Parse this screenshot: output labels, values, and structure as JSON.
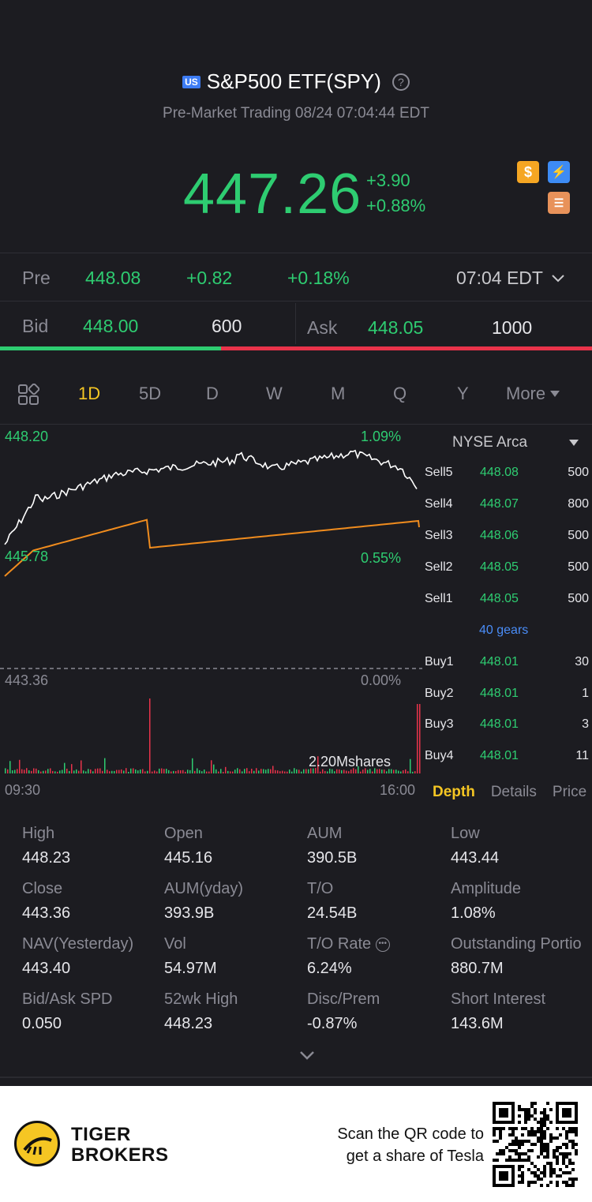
{
  "header": {
    "market_badge": "US",
    "title": "S&P500 ETF(SPY)",
    "subtitle": "Pre-Market Trading 08/24 07:04:44 EDT"
  },
  "quote": {
    "price": "447.26",
    "change": "+3.90",
    "change_pct": "+0.88%"
  },
  "pre": {
    "label": "Pre",
    "price": "448.08",
    "change": "+0.82",
    "change_pct": "+0.18%",
    "time": "07:04 EDT"
  },
  "bid_ask": {
    "bid_label": "Bid",
    "bid_price": "448.00",
    "bid_size": "600",
    "ask_label": "Ask",
    "ask_price": "448.05",
    "ask_size": "1000",
    "bid_fraction": 0.373
  },
  "tabs": [
    "1D",
    "5D",
    "D",
    "W",
    "M",
    "Q",
    "Y"
  ],
  "more_label": "More",
  "chart": {
    "top_price": "448.20",
    "top_pct": "1.09%",
    "mid_price": "445.78",
    "mid_pct": "0.55%",
    "base_price": "443.36",
    "base_pct": "0.00%",
    "volume_label": "2.20Mshares",
    "start_time": "09:30",
    "end_time": "16:00"
  },
  "depth": {
    "exchange": "NYSE Arca",
    "gears": "40 gears",
    "sell": [
      {
        "label": "Sell5",
        "price": "448.08",
        "qty": "500"
      },
      {
        "label": "Sell4",
        "price": "448.07",
        "qty": "800"
      },
      {
        "label": "Sell3",
        "price": "448.06",
        "qty": "500"
      },
      {
        "label": "Sell2",
        "price": "448.05",
        "qty": "500"
      },
      {
        "label": "Sell1",
        "price": "448.05",
        "qty": "500"
      }
    ],
    "buy": [
      {
        "label": "Buy1",
        "price": "448.01",
        "qty": "30"
      },
      {
        "label": "Buy2",
        "price": "448.01",
        "qty": "1"
      },
      {
        "label": "Buy3",
        "price": "448.01",
        "qty": "3"
      },
      {
        "label": "Buy4",
        "price": "448.01",
        "qty": "11"
      }
    ],
    "tabs": [
      "Depth",
      "Details",
      "Price"
    ]
  },
  "stats": [
    {
      "k": "High",
      "v": "448.23"
    },
    {
      "k": "Open",
      "v": "445.16"
    },
    {
      "k": "AUM",
      "v": "390.5B"
    },
    {
      "k": "Low",
      "v": "443.44"
    },
    {
      "k": "Close",
      "v": "443.36"
    },
    {
      "k": "AUM(yday)",
      "v": "393.9B"
    },
    {
      "k": "T/O",
      "v": "24.54B"
    },
    {
      "k": "Amplitude",
      "v": "1.08%"
    },
    {
      "k": "NAV(Yesterday)",
      "v": "443.40"
    },
    {
      "k": "Vol",
      "v": "54.97M"
    },
    {
      "k": "T/O Rate",
      "v": "6.24%"
    },
    {
      "k": "Outstanding Portio",
      "v": "880.7M"
    },
    {
      "k": "Bid/Ask SPD",
      "v": "0.050"
    },
    {
      "k": "52wk High",
      "v": "448.23"
    },
    {
      "k": "Disc/Prem",
      "v": "-0.87%"
    },
    {
      "k": "Short Interest",
      "v": "143.6M"
    }
  ],
  "footer": {
    "brand_line1": "TIGER",
    "brand_line2": "BROKERS",
    "scan_line1": "Scan the QR code to",
    "scan_line2": "get a share of Tesla"
  },
  "colors": {
    "up": "#2ecc71",
    "down": "#e8334a",
    "accent": "#f5c623",
    "avg_line": "#f08c1e"
  }
}
